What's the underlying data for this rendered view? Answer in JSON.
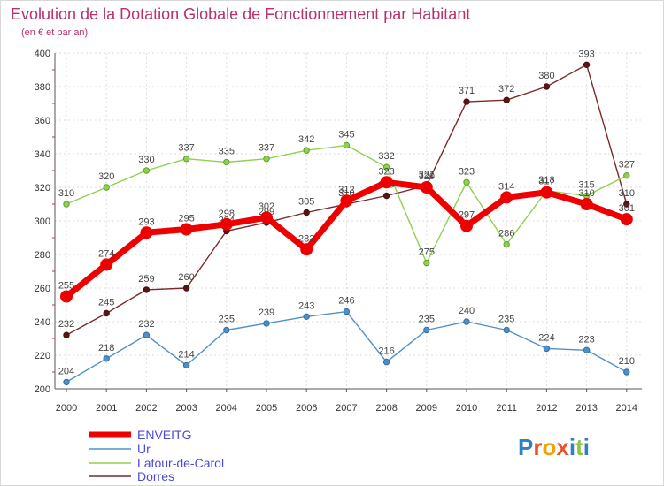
{
  "chart_data": {
    "type": "line",
    "title": "Evolution de la Dotation Globale de Fonctionnement par Habitant",
    "subtitle": "(en € et par an)",
    "xlabel": "",
    "ylabel": "",
    "categories": [
      "2000",
      "2001",
      "2002",
      "2003",
      "2004",
      "2005",
      "2006",
      "2007",
      "2008",
      "2009",
      "2010",
      "2011",
      "2012",
      "2013",
      "2014"
    ],
    "ylim": [
      200,
      400
    ],
    "yticks": [
      200,
      220,
      240,
      260,
      280,
      300,
      320,
      340,
      360,
      380,
      400
    ],
    "grid": true,
    "legend_position": "bottom-left",
    "series": [
      {
        "name": "ENVEITG",
        "color": "#ee0000",
        "values": [
          255,
          274,
          293,
          295,
          298,
          302,
          283,
          312,
          323,
          320,
          297,
          314,
          317,
          310,
          301
        ]
      },
      {
        "name": "Ur",
        "color": "#4f90c8",
        "values": [
          204,
          218,
          232,
          214,
          235,
          239,
          243,
          246,
          216,
          235,
          240,
          235,
          224,
          223,
          210
        ]
      },
      {
        "name": "Latour-de-Carol",
        "color": "#8fd14f",
        "values": [
          310,
          320,
          330,
          337,
          335,
          337,
          342,
          345,
          332,
          275,
          323,
          286,
          318,
          315,
          327
        ]
      },
      {
        "name": "Dorres",
        "color": "#7a2a2a",
        "values": [
          232,
          245,
          259,
          260,
          294,
          299,
          305,
          310,
          315,
          321,
          371,
          372,
          380,
          393,
          310
        ]
      }
    ]
  },
  "logo": {
    "text": "Proxiti",
    "letter_colors": [
      "#2f7fc1",
      "#e8542a",
      "#f1a300",
      "#e8542a",
      "#2f7fc1",
      "#8cc63f",
      "#2f7fc1"
    ]
  }
}
